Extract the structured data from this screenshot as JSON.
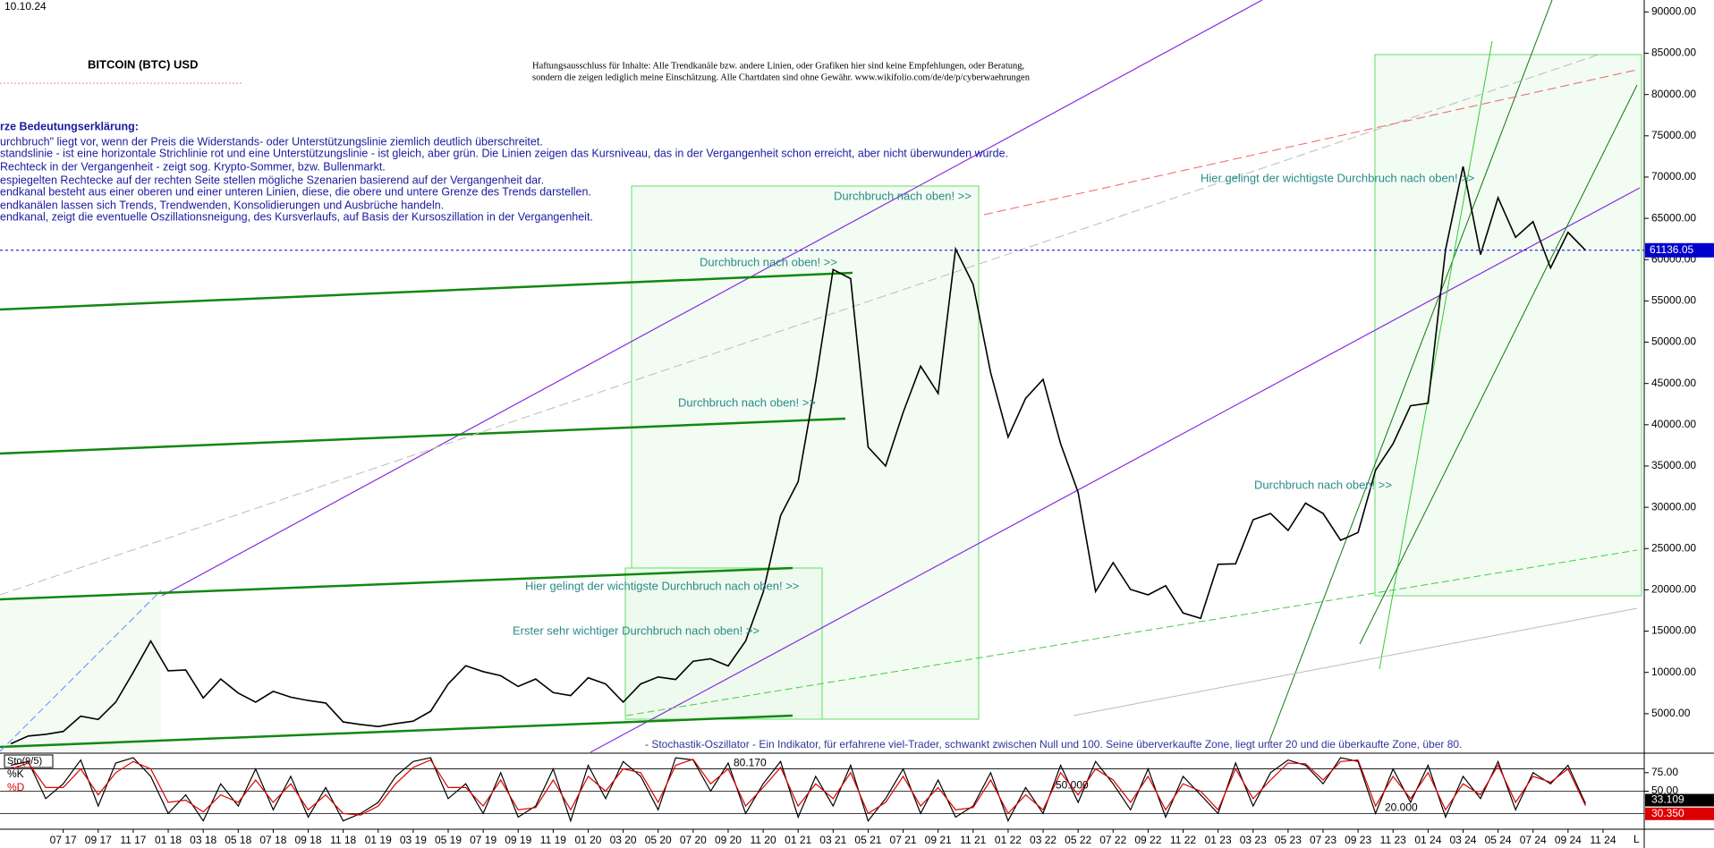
{
  "chart_data": {
    "type": "line",
    "date": "10.10.24",
    "title": "BITCOIN (BTC) USD",
    "disclaimer": [
      "Haftungsausschluss für Inhalte: Alle Trendkanäle bzw. andere Linien, oder Grafiken hier sind keine Empfehlungen, oder Beratung,",
      "sondern die zeigen lediglich meine Einschätzung. Alle Chartdaten sind ohne Gewähr. www.wikifolio.com/de/de/p/cyberwaehrungen"
    ],
    "legend_text": [
      "rze Bedeutungserklärung:",
      "urchbruch\" liegt vor, wenn der Preis die Widerstands- oder Unterstützungslinie ziemlich deutlich überschreitet.",
      "standslinie - ist eine horizontale Strichlinie rot und eine Unterstützungslinie - ist gleich, aber grün. Die Linien zeigen das Kursniveau, das in der Vergangenheit schon erreicht, aber nicht überwunden wurde.",
      " Rechteck in der Vergangenheit - zeigt sog. Krypto-Sommer, bzw. Bullenmarkt.",
      "espiegelten Rechtecke auf der rechten Seite stellen mögliche Szenarien basierend auf der Vergangenheit dar.",
      "endkanal besteht aus einer oberen und einer unteren Linien, diese, die obere und untere Grenze des Trends darstellen.",
      "endkanälen lassen sich Trends, Trendwenden, Konsolidierungen und Ausbrüche handeln.",
      "endkanal, zeigt die eventuelle Oszillationsneigung, des Kursverlaufs, auf Basis der Kursoszillation in der Vergangenheit."
    ],
    "annotations": [
      "Durchbruch nach oben! >>",
      "Durchbruch nach oben! >>",
      "Durchbruch nach oben! >>",
      "Durchbruch nach oben! >>",
      "Hier gelingt der wichtigste Durchbruch nach oben! >>",
      "Hier gelingt der wichtigste Durchbruch nach oben! >>",
      "Erster sehr wichtiger Durchbruch nach oben! >>",
      "- Stochastik-Oszillator - Ein Indikator, für erfahrene viel-Trader, schwankt zwischen Null und 100. Seine überverkaufte Zone, liegt unter 20 und die überkaufte Zone, über 80."
    ],
    "categories": [
      null,
      null,
      null,
      "07 17",
      null,
      "09 17",
      null,
      "11 17",
      null,
      "01 18",
      null,
      "03 18",
      null,
      "05 18",
      null,
      "07 18",
      null,
      "09 18",
      null,
      "11 18",
      null,
      "01 19",
      null,
      "03 19",
      null,
      "05 19",
      null,
      "07 19",
      null,
      "09 19",
      null,
      "11 19",
      null,
      "01 20",
      null,
      "03 20",
      null,
      "05 20",
      null,
      "07 20",
      null,
      "09 20",
      null,
      "11 20",
      null,
      "01 21",
      null,
      "03 21",
      null,
      "05 21",
      null,
      "07 21",
      null,
      "09 21",
      null,
      "11 21",
      null,
      "01 22",
      null,
      "03 22",
      null,
      "05 22",
      null,
      "07 22",
      null,
      "09 22",
      null,
      "11 22",
      null,
      "01 23",
      null,
      "03 23",
      null,
      "05 23",
      null,
      "07 23",
      null,
      "09 23",
      null,
      "11 23",
      null,
      "01 24",
      null,
      "03 24",
      null,
      "05 24",
      null,
      "07 24",
      null,
      "09 24",
      null,
      "11 24"
    ],
    "series": [
      {
        "name": "BTC",
        "color": "#000000",
        "values": [
          1350,
          2300,
          2500,
          2850,
          4700,
          4300,
          6400,
          10000,
          13800,
          10200,
          10300,
          6900,
          9200,
          7500,
          6400,
          7700,
          7000,
          6600,
          6300,
          4000,
          3700,
          3450,
          3800,
          4100,
          5300,
          8600,
          10800,
          10100,
          9600,
          8300,
          9200,
          7550,
          7200,
          9350,
          8600,
          6400,
          8600,
          9450,
          9140,
          11350,
          11650,
          10780,
          13800,
          19700,
          29000,
          33100,
          45200,
          58800,
          57700,
          37300,
          35000,
          41500,
          47100,
          43800,
          61300,
          57000,
          46300,
          38500,
          43200,
          45500,
          37700,
          31800,
          19800,
          23300,
          20050,
          19400,
          20500,
          17200,
          16550,
          23100,
          23150,
          28500,
          29250,
          27200,
          30500,
          29250,
          26000,
          26950,
          34500,
          37700,
          42300,
          42600,
          61200,
          71300,
          60600,
          67500,
          62700,
          64600,
          59000,
          63300,
          61136.05,
          null
        ]
      }
    ],
    "last_price": 61136.05,
    "last_price_color": "#0000cc",
    "ylim": [
      325,
      91450
    ],
    "yticks": [
      {
        "value": 5000,
        "label": "5000.00"
      },
      {
        "value": 10000,
        "label": "10000.00"
      },
      {
        "value": 15000,
        "label": "15000.00"
      },
      {
        "value": 20000,
        "label": "20000.00"
      },
      {
        "value": 25000,
        "label": "25000.00"
      },
      {
        "value": 30000,
        "label": "30000.00"
      },
      {
        "value": 35000,
        "label": "35000.00"
      },
      {
        "value": 40000,
        "label": "40000.00"
      },
      {
        "value": 45000,
        "label": "45000.00"
      },
      {
        "value": 50000,
        "label": "50000.00"
      },
      {
        "value": 55000,
        "label": "55000.00"
      },
      {
        "value": 60000,
        "label": "60000.00"
      },
      {
        "value": 65000,
        "label": "65000.00"
      },
      {
        "value": 70000,
        "label": "70000.00"
      },
      {
        "value": 75000,
        "label": "75000.00"
      },
      {
        "value": 80000,
        "label": "80000.00"
      },
      {
        "value": 85000,
        "label": "85000.00"
      },
      {
        "value": 90000,
        "label": "90000.00"
      }
    ],
    "grid": false,
    "stochastic": {
      "label": "Sto(9/5)",
      "ylim": [
        0,
        100
      ],
      "yticks": [
        {
          "value": 75,
          "label": "75.00"
        },
        {
          "value": 50,
          "label": "50.00"
        }
      ],
      "levels": [
        {
          "value": 80.17,
          "label": "80.170"
        },
        {
          "value": 50,
          "label": "50.000"
        },
        {
          "value": 20,
          "label": "20.000"
        }
      ],
      "series": [
        {
          "name": "%K",
          "color": "#000000",
          "last_label": "33.109",
          "values": [
            85,
            90,
            40,
            60,
            92,
            30,
            88,
            95,
            70,
            20,
            45,
            10,
            60,
            30,
            80,
            25,
            70,
            15,
            55,
            10,
            20,
            35,
            70,
            90,
            95,
            40,
            60,
            20,
            75,
            15,
            30,
            80,
            10,
            85,
            40,
            90,
            70,
            25,
            95,
            92,
            50,
            88,
            20,
            60,
            90,
            15,
            70,
            30,
            85,
            10,
            40,
            80,
            20,
            65,
            15,
            30,
            75,
            10,
            55,
            20,
            85,
            35,
            90,
            60,
            25,
            80,
            15,
            70,
            45,
            20,
            88,
            30,
            75,
            92,
            85,
            60,
            95,
            90,
            20,
            80,
            35,
            85,
            15,
            70,
            40,
            90,
            25,
            75,
            60,
            85,
            33.109,
            null
          ]
        },
        {
          "name": "%D",
          "color": "#dd0000",
          "last_label": "30.350",
          "values": [
            80,
            88,
            55,
            55,
            80,
            45,
            75,
            90,
            80,
            35,
            38,
            22,
            45,
            35,
            65,
            35,
            60,
            25,
            45,
            20,
            18,
            30,
            60,
            82,
            92,
            55,
            55,
            30,
            65,
            25,
            28,
            65,
            25,
            70,
            50,
            80,
            75,
            35,
            85,
            93,
            60,
            80,
            30,
            55,
            82,
            30,
            60,
            40,
            75,
            20,
            35,
            70,
            30,
            55,
            25,
            28,
            65,
            20,
            45,
            25,
            75,
            45,
            80,
            65,
            35,
            70,
            25,
            60,
            50,
            25,
            80,
            40,
            65,
            88,
            87,
            65,
            90,
            92,
            30,
            70,
            40,
            75,
            25,
            60,
            45,
            85,
            35,
            70,
            62,
            80,
            30.35,
            null
          ]
        }
      ]
    },
    "corner_label": "L"
  }
}
